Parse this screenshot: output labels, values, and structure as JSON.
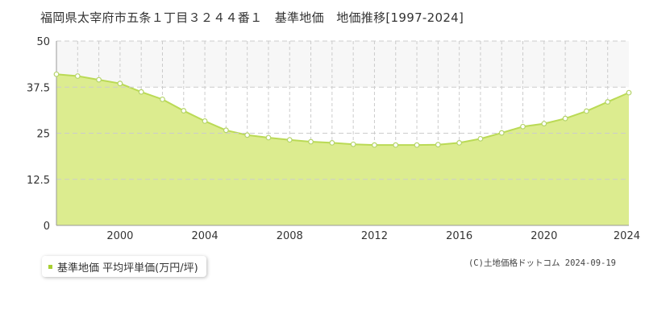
{
  "title": "福岡県太宰府市五条１丁目３２４４番１　基準地価　地価推移[1997-2024]",
  "legend": {
    "label": "基準地価 平均坪単価(万円/坪)"
  },
  "copyright": "(C)土地価格ドットコム 2024-09-19",
  "colors": {
    "area_fill": "#dcec8f",
    "line": "#bada55",
    "marker_fill": "#ffffff",
    "marker_stroke": "#b5d46a",
    "grid": "#cccccc",
    "axis_text": "#333333",
    "upper_band": "#f7f7f7"
  },
  "chart_data": {
    "type": "area",
    "title": "",
    "xlabel": "",
    "ylabel": "",
    "xlim": [
      1997,
      2024
    ],
    "ylim": [
      0,
      50
    ],
    "yticks": [
      0,
      12.5,
      25,
      37.5,
      50
    ],
    "ytick_labels": [
      "0",
      "12.5",
      "25",
      "37.5",
      "50"
    ],
    "xticks": [
      2000,
      2004,
      2008,
      2012,
      2016,
      2020,
      2024
    ],
    "xtick_labels": [
      "2000",
      "2004",
      "2008",
      "2012",
      "2016",
      "2020",
      "2024"
    ],
    "grid": true,
    "series": [
      {
        "name": "基準地価 平均坪単価(万円/坪)",
        "x": [
          1997,
          1998,
          1999,
          2000,
          2001,
          2002,
          2003,
          2004,
          2005,
          2006,
          2007,
          2008,
          2009,
          2010,
          2011,
          2012,
          2013,
          2014,
          2015,
          2016,
          2017,
          2018,
          2019,
          2020,
          2021,
          2022,
          2023,
          2024
        ],
        "values": [
          41.0,
          40.5,
          39.5,
          38.5,
          36.2,
          34.2,
          31.1,
          28.3,
          25.8,
          24.5,
          23.8,
          23.2,
          22.7,
          22.4,
          22.0,
          21.8,
          21.8,
          21.8,
          21.9,
          22.4,
          23.5,
          25.1,
          26.8,
          27.6,
          29.0,
          31.0,
          33.5,
          36.0
        ]
      }
    ]
  }
}
